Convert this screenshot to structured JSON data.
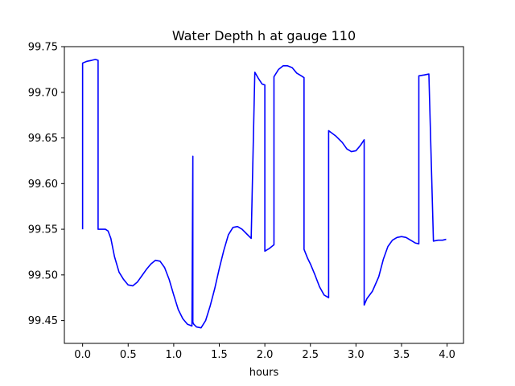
{
  "chart_data": {
    "type": "line",
    "title": "Water Depth h at gauge 110",
    "xlabel": "hours",
    "ylabel": "",
    "xlim": [
      -0.2,
      4.18
    ],
    "ylim": [
      99.425,
      99.75
    ],
    "xticks": [
      0.0,
      0.5,
      1.0,
      1.5,
      2.0,
      2.5,
      3.0,
      3.5,
      4.0
    ],
    "xtick_labels": [
      "0.0",
      "0.5",
      "1.0",
      "1.5",
      "2.0",
      "2.5",
      "3.0",
      "3.5",
      "4.0"
    ],
    "yticks": [
      99.45,
      99.5,
      99.55,
      99.6,
      99.65,
      99.7,
      99.75
    ],
    "ytick_labels": [
      "99.45",
      "99.50",
      "99.55",
      "99.60",
      "99.65",
      "99.70",
      "99.75"
    ],
    "grid": false,
    "colors": {
      "line": "#0000ff"
    },
    "series": [
      {
        "x": [
          0.0,
          0.0,
          0.05,
          0.1,
          0.14,
          0.17,
          0.17,
          0.25,
          0.28,
          0.31,
          0.35,
          0.4,
          0.45,
          0.5,
          0.55,
          0.6,
          0.65,
          0.7,
          0.75,
          0.8,
          0.85,
          0.9,
          0.95,
          1.0,
          1.05,
          1.1,
          1.15,
          1.2,
          1.2,
          1.21,
          1.21,
          1.22,
          1.25,
          1.3,
          1.35,
          1.4,
          1.45,
          1.5,
          1.55,
          1.6,
          1.65,
          1.7,
          1.75,
          1.8,
          1.85,
          1.89,
          1.89,
          1.93,
          1.97,
          2.0,
          2.0,
          2.05,
          2.1,
          2.1,
          2.15,
          2.2,
          2.25,
          2.3,
          2.35,
          2.4,
          2.43,
          2.43,
          2.47,
          2.5,
          2.55,
          2.6,
          2.65,
          2.7,
          2.7,
          2.78,
          2.85,
          2.9,
          2.95,
          3.0,
          3.05,
          3.09,
          3.09,
          3.12,
          3.18,
          3.25,
          3.3,
          3.35,
          3.4,
          3.45,
          3.5,
          3.55,
          3.6,
          3.65,
          3.69,
          3.69,
          3.75,
          3.8,
          3.8,
          3.85,
          3.9,
          3.95,
          3.99
        ],
        "y": [
          99.55,
          99.732,
          99.734,
          99.735,
          99.736,
          99.735,
          99.55,
          99.55,
          99.548,
          99.54,
          99.52,
          99.503,
          99.495,
          99.489,
          99.488,
          99.492,
          99.499,
          99.506,
          99.512,
          99.516,
          99.515,
          99.508,
          99.495,
          99.478,
          99.462,
          99.452,
          99.446,
          99.444,
          99.445,
          99.63,
          99.448,
          99.446,
          99.443,
          99.442,
          99.45,
          99.466,
          99.485,
          99.507,
          99.527,
          99.544,
          99.552,
          99.553,
          99.55,
          99.545,
          99.54,
          99.722,
          99.722,
          99.715,
          99.709,
          99.708,
          99.526,
          99.529,
          99.533,
          99.717,
          99.725,
          99.729,
          99.729,
          99.727,
          99.721,
          99.718,
          99.716,
          99.528,
          99.518,
          99.512,
          99.5,
          99.487,
          99.478,
          99.475,
          99.658,
          99.652,
          99.645,
          99.638,
          99.635,
          99.636,
          99.642,
          99.648,
          99.467,
          99.474,
          99.482,
          99.498,
          99.517,
          99.531,
          99.538,
          99.541,
          99.542,
          99.541,
          99.538,
          99.535,
          99.534,
          99.718,
          99.719,
          99.72,
          99.72,
          99.537,
          99.538,
          99.538,
          99.539
        ]
      }
    ]
  }
}
